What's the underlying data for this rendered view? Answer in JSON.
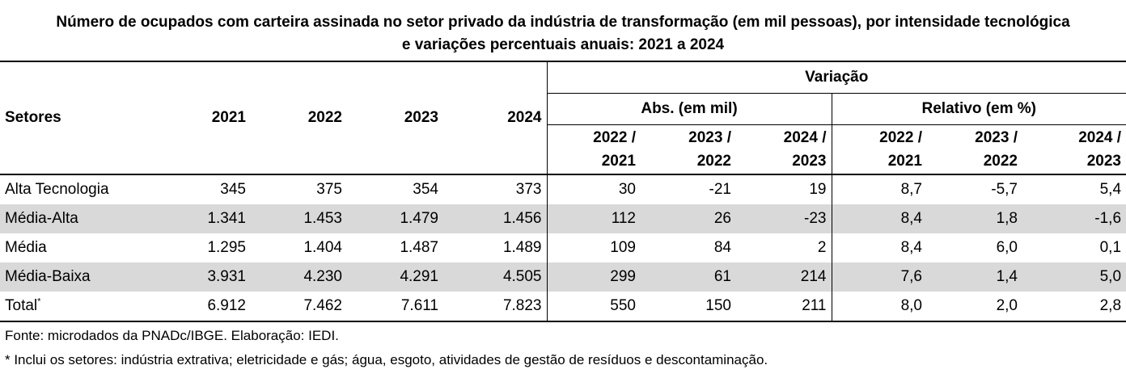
{
  "title": {
    "line1": "Número de ocupados com carteira assinada no setor privado da indústria de transformação (em mil pessoas), por intensidade tecnológica",
    "line2": "e variações percentuais anuais:  2021 a 2024"
  },
  "header": {
    "setores": "Setores",
    "years": [
      "2021",
      "2022",
      "2023",
      "2024"
    ],
    "variacao": "Variação",
    "abs": "Abs. (em mil)",
    "relativo": "Relativo (em %)",
    "periods_top": [
      "2022 /",
      "2023 /",
      "2024 /",
      "2022 /",
      "2023 /",
      "2024 /"
    ],
    "periods_bottom": [
      "2021",
      "2022",
      "2023",
      "2021",
      "2022",
      "2023"
    ]
  },
  "rows": [
    {
      "label": "Alta Tecnologia",
      "sup": "",
      "values": [
        "345",
        "375",
        "354",
        "373",
        "30",
        "-21",
        "19",
        "8,7",
        "-5,7",
        "5,4"
      ]
    },
    {
      "label": "Média-Alta",
      "sup": "",
      "values": [
        "1.341",
        "1.453",
        "1.479",
        "1.456",
        "112",
        "26",
        "-23",
        "8,4",
        "1,8",
        "-1,6"
      ]
    },
    {
      "label": "Média",
      "sup": "",
      "values": [
        "1.295",
        "1.404",
        "1.487",
        "1.489",
        "109",
        "84",
        "2",
        "8,4",
        "6,0",
        "0,1"
      ]
    },
    {
      "label": "Média-Baixa",
      "sup": "",
      "values": [
        "3.931",
        "4.230",
        "4.291",
        "4.505",
        "299",
        "61",
        "214",
        "7,6",
        "1,4",
        "5,0"
      ]
    },
    {
      "label": "Total",
      "sup": "*",
      "values": [
        "6.912",
        "7.462",
        "7.611",
        "7.823",
        "550",
        "150",
        "211",
        "8,0",
        "2,0",
        "2,8"
      ]
    }
  ],
  "notes": {
    "source": "Fonte: microdados da PNADc/IBGE. Elaboração: IEDI.",
    "footnote": "* Inclui os setores: indústria extrativa; eletricidade e gás; água, esgoto, atividades de gestão de resíduos e descontaminação."
  },
  "colors": {
    "row_shade": "#d9d9d9"
  }
}
